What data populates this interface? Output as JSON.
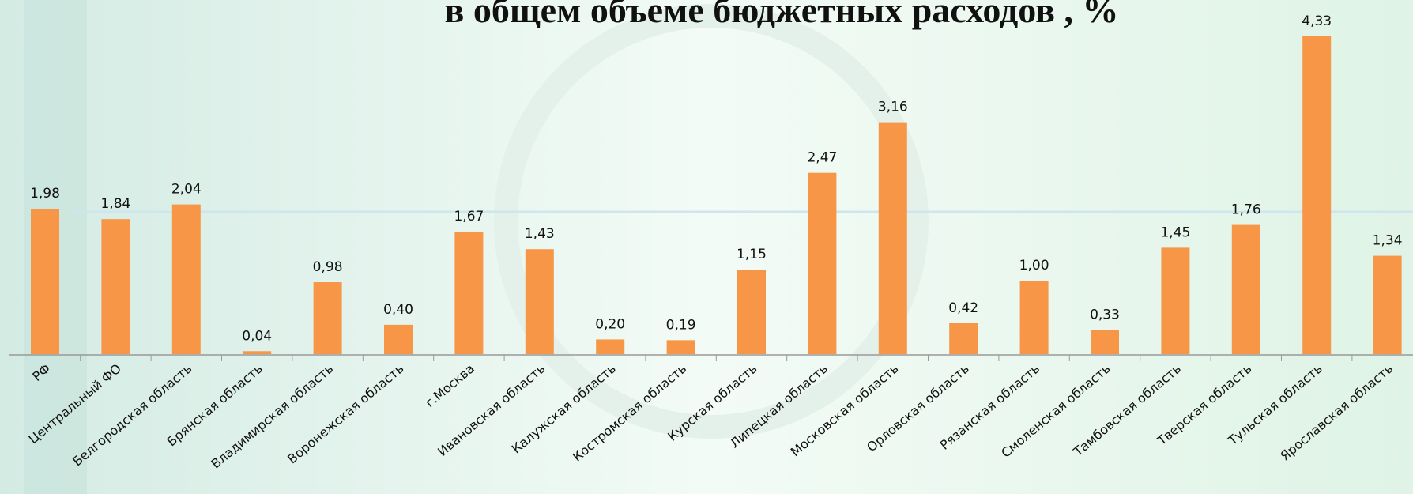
{
  "chart_data": {
    "type": "bar",
    "title": "в общем объеме бюджетных расходов , %",
    "categories": [
      "РФ",
      "Центральный ФО",
      "Белгородская область",
      "Брянская область",
      "Владимирская область",
      "Воронежская область",
      "г.Москва",
      "Ивановская область",
      "Калужская область",
      "Костромская область",
      "Курская область",
      "Липецкая область",
      "Московская область",
      "Орловская область",
      "Рязанская область",
      "Смоленская область",
      "Тамбовская область",
      "Тверская область",
      "Тульская область",
      "Ярославская область"
    ],
    "values": [
      1.98,
      1.84,
      2.04,
      0.04,
      0.98,
      0.4,
      1.67,
      1.43,
      0.2,
      0.19,
      1.15,
      2.47,
      3.16,
      0.42,
      1.0,
      0.33,
      1.45,
      1.76,
      4.33,
      1.34
    ],
    "value_labels": [
      "1,98",
      "1,84",
      "2,04",
      "0,04",
      "0,98",
      "0,40",
      "1,67",
      "1,43",
      "0,20",
      "0,19",
      "1,15",
      "2,47",
      "3,16",
      "0,42",
      "1,00",
      "0,33",
      "1,45",
      "1,76",
      "4,33",
      "1,34"
    ],
    "color": "#f79646"
  }
}
